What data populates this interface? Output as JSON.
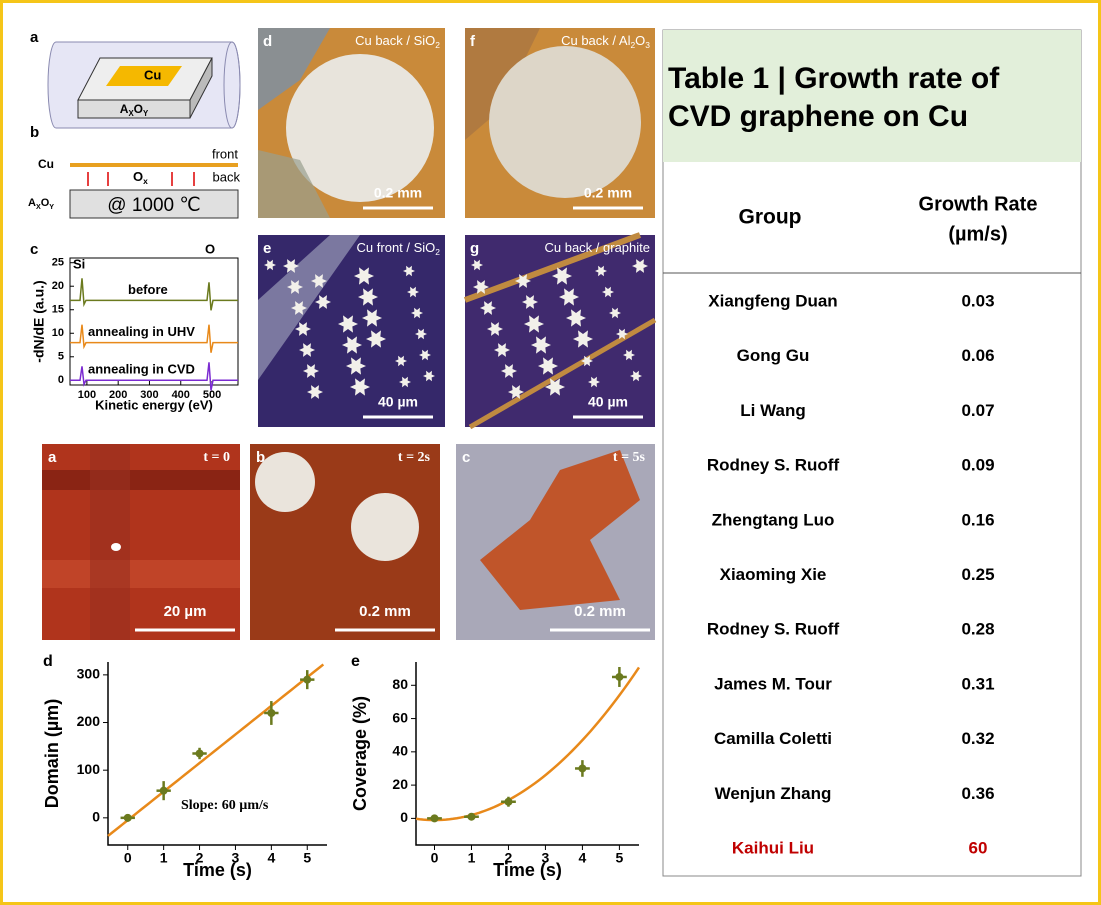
{
  "top_figure": {
    "panel_a": {
      "label": "a",
      "metal": "Cu",
      "substrate": [
        "A",
        "X",
        "O",
        "Y"
      ]
    },
    "panel_b": {
      "label": "b",
      "metal": "Cu",
      "front": "front",
      "back": "back",
      "species": [
        "O",
        "x"
      ],
      "substrate": [
        "A",
        "X",
        "O",
        "Y"
      ],
      "condition": "@ 1000 ℃"
    },
    "panel_c": {
      "label": "c",
      "ylabel": "-dN/dE (a.u.)",
      "xlabel": "Kinetic energy (eV)",
      "xlim": [
        46,
        583
      ],
      "ylim": [
        -1,
        26
      ],
      "xticks": [
        100,
        200,
        300,
        400,
        500
      ],
      "yticks": [
        0,
        5,
        10,
        15,
        20,
        25
      ],
      "peaks": [
        "Si",
        "O"
      ],
      "traces": [
        {
          "name": "before",
          "color": "#6b7a1e",
          "baseline": 17
        },
        {
          "name": "annealing in UHV",
          "color": "#e8891a",
          "baseline": 8
        },
        {
          "name": "annealing in CVD",
          "color": "#7b2bd1",
          "baseline": 0
        }
      ]
    },
    "photos": [
      {
        "label": "d",
        "caption": [
          "Cu back / SiO",
          "2"
        ],
        "scale": "0.2 mm"
      },
      {
        "label": "f",
        "caption": [
          "Cu back / Al",
          "2",
          "O",
          "3"
        ],
        "scale": "0.2 mm"
      },
      {
        "label": "e",
        "caption": [
          "Cu front / SiO",
          "2"
        ],
        "scale": "40 µm"
      },
      {
        "label": "g",
        "caption": [
          "Cu back / graphite"
        ],
        "scale": "40 µm"
      }
    ]
  },
  "bottom_figure": {
    "photos": [
      {
        "label": "a",
        "time": "t = 0",
        "scale": "20 µm"
      },
      {
        "label": "b",
        "time": "t = 2s",
        "scale": "0.2 mm"
      },
      {
        "label": "c",
        "time": "t = 5s",
        "scale": "0.2 mm"
      }
    ]
  },
  "chart_data": [
    {
      "type": "scatter",
      "label": "d",
      "xlabel": "Time (s)",
      "ylabel": "Domain (µm)",
      "annotation": "Slope: 60 µm/s",
      "x": [
        0,
        1,
        2,
        4,
        5
      ],
      "values": [
        0,
        57,
        135,
        220,
        290
      ],
      "errors": [
        8,
        20,
        12,
        25,
        20
      ],
      "x_errors": [
        0.2,
        0.2,
        0.2,
        0.2,
        0.2
      ],
      "color": "#6b7a1e",
      "fit": {
        "color": "#e8891a",
        "coefficients": [
          -5,
          60
        ]
      },
      "xlim": [
        -0.55,
        5.55
      ],
      "ylim": [
        -57,
        327
      ],
      "xticks": [
        0,
        1,
        2,
        3,
        4,
        5
      ],
      "yticks": [
        0,
        100,
        200,
        300
      ]
    },
    {
      "type": "scatter",
      "label": "e",
      "xlabel": "Time (s)",
      "ylabel": "Coverage (%)",
      "x": [
        0,
        1,
        2,
        4,
        5
      ],
      "values": [
        0,
        1,
        10,
        30,
        85
      ],
      "errors": [
        2,
        2,
        3,
        5,
        6
      ],
      "x_errors": [
        0.2,
        0.2,
        0.2,
        0.2,
        0.2
      ],
      "color": "#6b7a1e",
      "fit": {
        "color": "#e8891a",
        "coefficients": [
          -1,
          0,
          3
        ]
      },
      "xlim": [
        -0.5,
        5.53
      ],
      "ylim": [
        -16,
        94
      ],
      "xticks": [
        0,
        1,
        2,
        3,
        4,
        5
      ],
      "yticks": [
        0,
        20,
        40,
        60,
        80
      ]
    }
  ],
  "table": {
    "title": [
      "Table 1 |  Growth rate of",
      "CVD graphene on Cu"
    ],
    "headers": {
      "group": "Group",
      "rate": [
        "Growth Rate",
        "(µm/s)"
      ]
    },
    "rows": [
      [
        "Xiangfeng Duan",
        0.03
      ],
      [
        "Gong Gu",
        0.06
      ],
      [
        "Li Wang",
        0.07
      ],
      [
        "Rodney S. Ruoff",
        0.09
      ],
      [
        "Zhengtang Luo",
        0.16
      ],
      [
        "Xiaoming Xie",
        0.25
      ],
      [
        "Rodney S. Ruoff",
        0.28
      ],
      [
        "James M. Tour",
        0.31
      ],
      [
        "Camilla Coletti",
        0.32
      ],
      [
        "Wenjun Zhang",
        0.36
      ],
      [
        "Kaihui Liu",
        60
      ]
    ]
  }
}
